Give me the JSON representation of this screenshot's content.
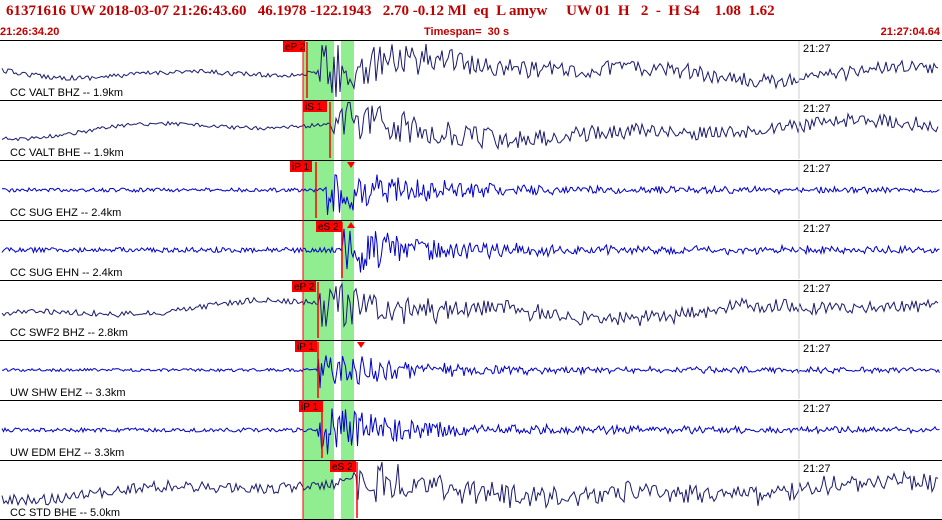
{
  "header": {
    "title": "61371616 UW 2018-03-07 21:26:43.60   46.1978 -122.1943   2.70 -0.12 Ml  eq  L amyw     UW 01  H   2  -  H S4    1.08  1.62",
    "start_time": "21:26:34.20",
    "timespan": "Timespan=  30 s",
    "end_time": "21:27:04.64"
  },
  "colors": {
    "accent": "#c00000",
    "velocity_trace": "#1a1a6e",
    "short_period_trace": "#0000cc",
    "window": "#90ee90",
    "pick": "#ff0000"
  },
  "traces": [
    {
      "label": "CC VALT BHZ -- 1.9km",
      "time_mark": "21:27",
      "pick": "eP 2",
      "tick": ""
    },
    {
      "label": "CC VALT BHE -- 1.9km",
      "time_mark": "21:27",
      "pick": "iS 1",
      "tick": ""
    },
    {
      "label": "CC SUG EHZ -- 2.4km",
      "time_mark": "21:27",
      "pick": "iP 1",
      "tick": "down"
    },
    {
      "label": "CC SUG EHN -- 2.4km",
      "time_mark": "21:27",
      "pick": "eS 2",
      "tick": "up"
    },
    {
      "label": "CC SWF2 BHZ -- 2.8km",
      "time_mark": "21:27",
      "pick": "eP 2",
      "tick": ""
    },
    {
      "label": "UW SHW EHZ -- 3.3km",
      "time_mark": "21:27",
      "pick": "iP 1",
      "tick": "down"
    },
    {
      "label": "UW EDM EHZ -- 3.3km",
      "time_mark": "21:27",
      "pick": "iP 1",
      "tick": ""
    },
    {
      "label": "CC STD BHE -- 5.0km",
      "time_mark": "21:27",
      "pick": "eS 2",
      "tick": ""
    }
  ]
}
